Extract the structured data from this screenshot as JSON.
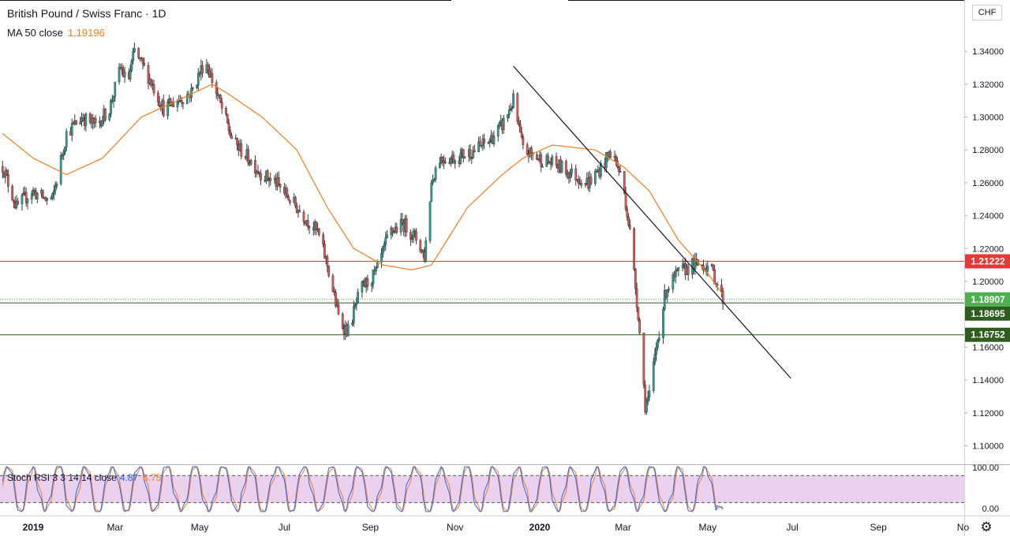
{
  "header": {
    "title": "British Pound / Swiss Franc · 1D",
    "ma_label": "MA 50 close",
    "ma_value": "1.19196",
    "currency": "CHF"
  },
  "colors": {
    "up": "#26a69a",
    "down": "#ef5350",
    "candle_body": "#3a3a3a",
    "ma": "#f57c1f",
    "resistance": "#e53935",
    "support": "#2e5d1f",
    "trendline": "#131722",
    "current_price": "#4caf50",
    "stoch_k": "#2962ff",
    "stoch_d": "#f57c1f",
    "stoch_band": "#e1bee7"
  },
  "chart_data": [
    {
      "type": "candlestick",
      "title": "British Pound / Swiss Franc · 1D",
      "y_ticks": [
        "1.10000",
        "1.12000",
        "1.14000",
        "1.16000",
        "1.18000",
        "1.20000",
        "1.22000",
        "1.24000",
        "1.26000",
        "1.28000",
        "1.30000",
        "1.32000",
        "1.34000"
      ],
      "ylim": [
        1.09,
        1.365
      ],
      "x_ticks": [
        "2019",
        "Mar",
        "May",
        "Jul",
        "Sep",
        "Nov",
        "2020",
        "Mar",
        "May",
        "Jul",
        "Sep",
        "No"
      ],
      "close_path": [
        [
          "2018-12-10",
          1.27
        ],
        [
          "2018-12-20",
          1.245
        ],
        [
          "2018-12-31",
          1.255
        ],
        [
          "2019-01-10",
          1.25
        ],
        [
          "2019-01-15",
          1.25
        ],
        [
          "2019-01-25",
          1.29
        ],
        [
          "2019-02-05",
          1.3
        ],
        [
          "2019-02-15",
          1.295
        ],
        [
          "2019-02-25",
          1.305
        ],
        [
          "2019-03-05",
          1.33
        ],
        [
          "2019-03-10",
          1.32
        ],
        [
          "2019-03-15",
          1.34
        ],
        [
          "2019-03-25",
          1.325
        ],
        [
          "2019-04-05",
          1.305
        ],
        [
          "2019-04-15",
          1.31
        ],
        [
          "2019-04-25",
          1.315
        ],
        [
          "2019-05-05",
          1.335
        ],
        [
          "2019-05-15",
          1.31
        ],
        [
          "2019-05-25",
          1.285
        ],
        [
          "2019-06-05",
          1.275
        ],
        [
          "2019-06-15",
          1.265
        ],
        [
          "2019-06-25",
          1.26
        ],
        [
          "2019-07-05",
          1.25
        ],
        [
          "2019-07-15",
          1.24
        ],
        [
          "2019-07-25",
          1.23
        ],
        [
          "2019-08-01",
          1.21
        ],
        [
          "2019-08-10",
          1.175
        ],
        [
          "2019-08-16",
          1.17
        ],
        [
          "2019-08-25",
          1.195
        ],
        [
          "2019-09-05",
          1.205
        ],
        [
          "2019-09-15",
          1.23
        ],
        [
          "2019-09-25",
          1.235
        ],
        [
          "2019-10-05",
          1.225
        ],
        [
          "2019-10-10",
          1.215
        ],
        [
          "2019-10-15",
          1.26
        ],
        [
          "2019-10-20",
          1.275
        ],
        [
          "2019-11-01",
          1.275
        ],
        [
          "2019-11-15",
          1.28
        ],
        [
          "2019-11-25",
          1.285
        ],
        [
          "2019-12-05",
          1.295
        ],
        [
          "2019-12-13",
          1.31
        ],
        [
          "2019-12-20",
          1.28
        ],
        [
          "2019-12-31",
          1.275
        ],
        [
          "2020-01-15",
          1.27
        ],
        [
          "2020-01-25",
          1.265
        ],
        [
          "2020-02-05",
          1.26
        ],
        [
          "2020-02-15",
          1.27
        ],
        [
          "2020-02-22",
          1.28
        ],
        [
          "2020-03-01",
          1.26
        ],
        [
          "2020-03-06",
          1.23
        ],
        [
          "2020-03-12",
          1.18
        ],
        [
          "2020-03-17",
          1.125
        ],
        [
          "2020-03-20",
          1.13
        ],
        [
          "2020-03-25",
          1.16
        ],
        [
          "2020-04-01",
          1.195
        ],
        [
          "2020-04-10",
          1.205
        ],
        [
          "2020-04-20",
          1.21
        ],
        [
          "2020-04-30",
          1.21
        ],
        [
          "2020-05-05",
          1.205
        ],
        [
          "2020-05-12",
          1.189
        ]
      ],
      "ma50_path": [
        [
          "2018-12-10",
          1.29
        ],
        [
          "2019-01-01",
          1.275
        ],
        [
          "2019-01-25",
          1.265
        ],
        [
          "2019-02-20",
          1.275
        ],
        [
          "2019-03-20",
          1.3
        ],
        [
          "2019-04-20",
          1.312
        ],
        [
          "2019-05-10",
          1.32
        ],
        [
          "2019-05-20",
          1.315
        ],
        [
          "2019-06-15",
          1.3
        ],
        [
          "2019-07-10",
          1.28
        ],
        [
          "2019-08-01",
          1.245
        ],
        [
          "2019-08-20",
          1.22
        ],
        [
          "2019-09-10",
          1.21
        ],
        [
          "2019-10-01",
          1.207
        ],
        [
          "2019-10-15",
          1.21
        ],
        [
          "2019-11-10",
          1.245
        ],
        [
          "2019-12-05",
          1.265
        ],
        [
          "2019-12-20",
          1.275
        ],
        [
          "2020-01-10",
          1.283
        ],
        [
          "2020-02-10",
          1.28
        ],
        [
          "2020-03-01",
          1.27
        ],
        [
          "2020-03-20",
          1.255
        ],
        [
          "2020-04-10",
          1.225
        ],
        [
          "2020-05-01",
          1.205
        ],
        [
          "2020-05-12",
          1.19196
        ]
      ],
      "trendline": {
        "from": [
          "2019-12-13",
          1.331
        ],
        "to": [
          "2020-06-30",
          1.141
        ]
      },
      "horizontal_levels": [
        {
          "label": "1.21222",
          "value": 1.21222,
          "role": "resistance"
        },
        {
          "label": "1.18907",
          "value": 1.18907,
          "role": "current_price"
        },
        {
          "label": "1.18695",
          "value": 1.18695,
          "role": "support"
        },
        {
          "label": "1.16752",
          "value": 1.16752,
          "role": "support"
        }
      ],
      "date_range": [
        "2018-12-10",
        "2020-05-12"
      ],
      "series": [
        {
          "name": "MA 50 close",
          "last": 1.19196
        }
      ]
    },
    {
      "type": "line",
      "title": "Stoch RSI 3 3 14 14 close",
      "y_ticks": [
        "100.00",
        "0.00"
      ],
      "ylim": [
        0,
        100
      ],
      "band": [
        20,
        80
      ],
      "series": [
        {
          "name": "K",
          "last": 4.87
        },
        {
          "name": "D",
          "last": 6.75
        }
      ]
    }
  ],
  "stoch": {
    "label": "Stoch RSI 3 3 14 14 close",
    "k_value": "4.87",
    "d_value": "6.75"
  },
  "footer": {
    "settings_icon": "gear-icon"
  }
}
